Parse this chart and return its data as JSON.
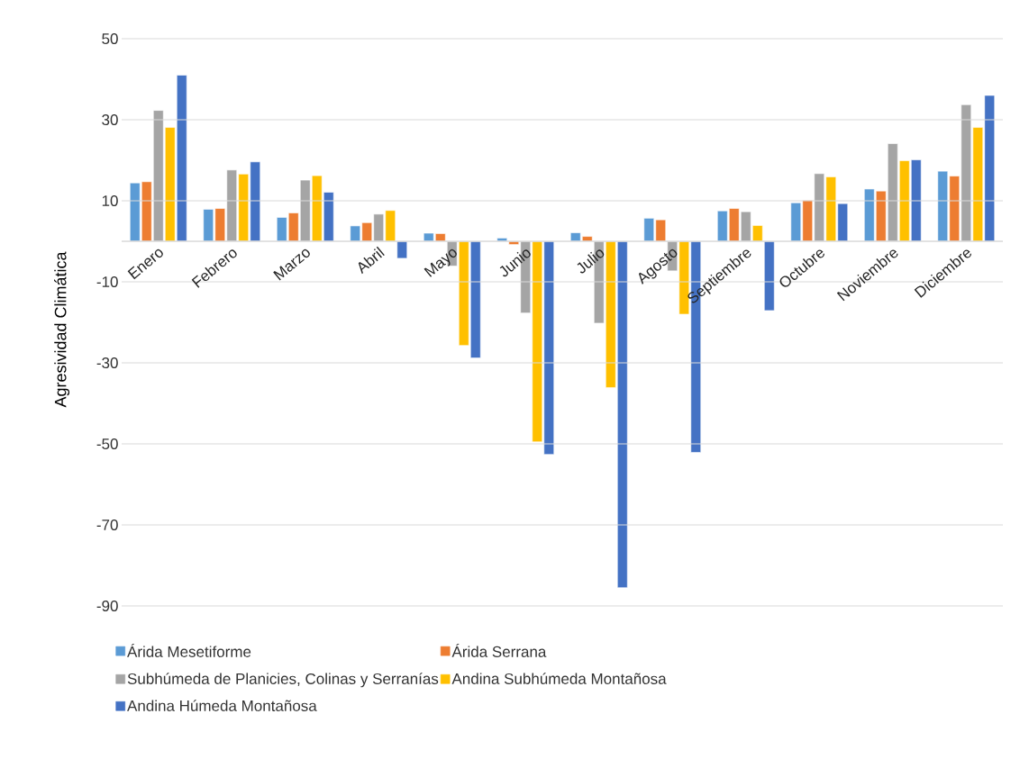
{
  "chart_data": {
    "type": "bar",
    "ylabel": "Agresividad Climática",
    "categories": [
      "Enero",
      "Febrero",
      "Marzo",
      "Abril",
      "Mayo",
      "Junio",
      "Julio",
      "Agosto",
      "Septiembre",
      "Octubre",
      "Noviembre",
      "Diciembre"
    ],
    "series": [
      {
        "name": "Árida Mesetiforme",
        "color": "#5b9bd5",
        "values": [
          14.4,
          7.9,
          5.9,
          3.8,
          2.0,
          0.8,
          2.1,
          5.7,
          7.5,
          9.5,
          12.9,
          17.3
        ]
      },
      {
        "name": "Árida Serrana",
        "color": "#ed7d31",
        "values": [
          14.7,
          8.1,
          7.0,
          4.6,
          1.9,
          -0.8,
          1.2,
          5.3,
          8.1,
          10.1,
          12.4,
          16.1
        ]
      },
      {
        "name": "Subhúmeda de Planicies, Colinas y Serranías",
        "color": "#a5a5a5",
        "values": [
          32.3,
          17.6,
          15.1,
          6.7,
          -6.1,
          -17.7,
          -20.2,
          -7.3,
          7.3,
          16.7,
          24.1,
          33.7
        ]
      },
      {
        "name": "Andina Subhúmeda Montañosa",
        "color": "#ffc000",
        "values": [
          28.1,
          16.6,
          16.2,
          7.6,
          -25.7,
          -49.5,
          -36.1,
          -18.0,
          3.9,
          15.9,
          19.9,
          28.1
        ]
      },
      {
        "name": "Andina Húmeda Montañosa",
        "color": "#4472c4",
        "values": [
          41.0,
          19.6,
          12.1,
          -4.2,
          -28.8,
          -52.6,
          -85.5,
          -52.1,
          -17.1,
          9.3,
          20.1,
          36.0
        ]
      }
    ],
    "ylim": [
      -90,
      50
    ],
    "yticks": [
      -90,
      -70,
      -50,
      -30,
      -10,
      10,
      30,
      50
    ],
    "grid": "y",
    "legend": "bottom"
  }
}
